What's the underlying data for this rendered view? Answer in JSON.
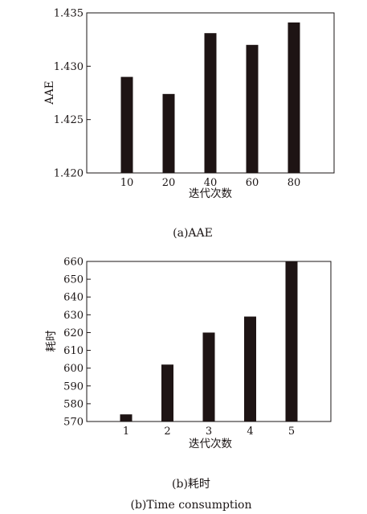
{
  "chart_data": [
    {
      "type": "bar",
      "categories": [
        "10",
        "20",
        "40",
        "60",
        "80"
      ],
      "values": [
        1.429,
        1.4274,
        1.4331,
        1.432,
        1.4341
      ],
      "ylabel": "AAE",
      "xlabel": "迭代次数",
      "ylim": [
        1.42,
        1.435
      ],
      "yticks": [
        "1.420",
        "1.425",
        "1.430",
        "1.435"
      ],
      "caption": "(a)AAE",
      "bar_color": "#1e1414",
      "grid": false
    },
    {
      "type": "bar",
      "categories": [
        "1",
        "2",
        "3",
        "4",
        "5"
      ],
      "values": [
        574,
        602,
        620,
        629,
        660
      ],
      "ylabel": "耗时",
      "xlabel": "迭代次数",
      "ylim": [
        570,
        660
      ],
      "yticks": [
        "570",
        "580",
        "590",
        "600",
        "610",
        "620",
        "630",
        "640",
        "650",
        "660"
      ],
      "caption": "(b)耗时",
      "caption_en": "(b)Time consumption",
      "bar_color": "#1e1414",
      "grid": false
    }
  ]
}
